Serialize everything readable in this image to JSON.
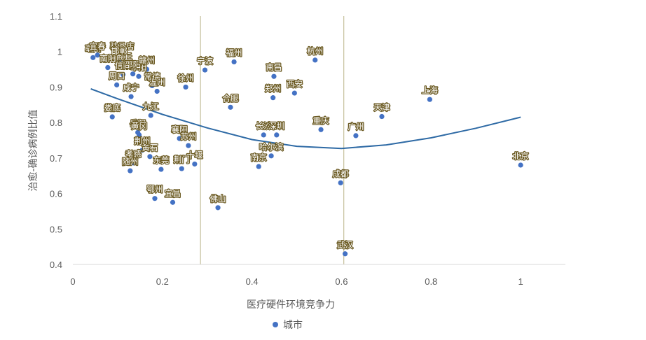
{
  "chart_data": {
    "type": "scatter",
    "xlabel": "医疗硬件环境竞争力",
    "ylabel": "治愈-确诊病例比值",
    "xlim": [
      0,
      1.1
    ],
    "ylim": [
      0.4,
      1.1
    ],
    "x_ticks": [
      "0",
      "0.2",
      "0.4",
      "0.6",
      "0.8",
      "1"
    ],
    "y_ticks": [
      "0.4",
      "0.5",
      "0.6",
      "0.7",
      "0.8",
      "0.9",
      "1",
      "1.1"
    ],
    "legend": {
      "position": "bottom",
      "entries": [
        "城市"
      ]
    },
    "grid": false,
    "colors": {
      "points": "#4472c4",
      "trend": "#2e6aa5",
      "ref_lines": "#c9c4a2",
      "label_outline": "#6b5a22"
    },
    "reference_lines_x": [
      0.285,
      0.605
    ],
    "trendline": {
      "type": "polynomial",
      "points": [
        [
          0.04,
          0.895
        ],
        [
          0.1,
          0.867
        ],
        [
          0.2,
          0.823
        ],
        [
          0.3,
          0.785
        ],
        [
          0.4,
          0.752
        ],
        [
          0.5,
          0.733
        ],
        [
          0.6,
          0.727
        ],
        [
          0.7,
          0.737
        ],
        [
          0.8,
          0.757
        ],
        [
          0.9,
          0.784
        ],
        [
          1.0,
          0.815
        ]
      ]
    },
    "series": [
      {
        "name": "城市",
        "points": [
          {
            "label": "北京",
            "x": 1.0,
            "y": 0.68
          },
          {
            "label": "上海",
            "x": 0.797,
            "y": 0.865
          },
          {
            "label": "天津",
            "x": 0.69,
            "y": 0.817
          },
          {
            "label": "广州",
            "x": 0.632,
            "y": 0.763
          },
          {
            "label": "成都",
            "x": 0.598,
            "y": 0.63
          },
          {
            "label": "武汉",
            "x": 0.608,
            "y": 0.43
          },
          {
            "label": "重庆",
            "x": 0.554,
            "y": 0.78
          },
          {
            "label": "杭州",
            "x": 0.541,
            "y": 0.976
          },
          {
            "label": "西安",
            "x": 0.495,
            "y": 0.883
          },
          {
            "label": "南昌",
            "x": 0.449,
            "y": 0.93
          },
          {
            "label": "郑州",
            "x": 0.447,
            "y": 0.87
          },
          {
            "label": "长沙",
            "x": 0.426,
            "y": 0.765
          },
          {
            "label": "深圳",
            "x": 0.455,
            "y": 0.765
          },
          {
            "label": "哈尔滨",
            "x": 0.443,
            "y": 0.706
          },
          {
            "label": "南京",
            "x": 0.415,
            "y": 0.676
          },
          {
            "label": "福州",
            "x": 0.36,
            "y": 0.971
          },
          {
            "label": "合肥",
            "x": 0.352,
            "y": 0.843
          },
          {
            "label": "佛山",
            "x": 0.324,
            "y": 0.56
          },
          {
            "label": "宁波",
            "x": 0.295,
            "y": 0.948
          },
          {
            "label": "徐州",
            "x": 0.252,
            "y": 0.9
          },
          {
            "label": "十堰",
            "x": 0.272,
            "y": 0.683
          },
          {
            "label": "荆门",
            "x": 0.243,
            "y": 0.67
          },
          {
            "label": "襄阳",
            "x": 0.238,
            "y": 0.755
          },
          {
            "label": "苏州",
            "x": 0.258,
            "y": 0.735
          },
          {
            "label": "宜昌",
            "x": 0.223,
            "y": 0.575
          },
          {
            "label": "鄂州",
            "x": 0.183,
            "y": 0.586
          },
          {
            "label": "东莞",
            "x": 0.197,
            "y": 0.668
          },
          {
            "label": "黄石",
            "x": 0.172,
            "y": 0.704
          },
          {
            "label": "荆州",
            "x": 0.155,
            "y": 0.722
          },
          {
            "label": "孝感",
            "x": 0.135,
            "y": 0.686
          },
          {
            "label": "随州",
            "x": 0.128,
            "y": 0.664
          },
          {
            "label": "岳阳",
            "x": 0.145,
            "y": 0.772
          },
          {
            "label": "黄冈",
            "x": 0.148,
            "y": 0.765
          },
          {
            "label": "九江",
            "x": 0.174,
            "y": 0.82
          },
          {
            "label": "娄底",
            "x": 0.088,
            "y": 0.816
          },
          {
            "label": "咸宁",
            "x": 0.13,
            "y": 0.873
          },
          {
            "label": "温州",
            "x": 0.188,
            "y": 0.888
          },
          {
            "label": "常德",
            "x": 0.177,
            "y": 0.904
          },
          {
            "label": "周口",
            "x": 0.098,
            "y": 0.906
          },
          {
            "label": "阜阳",
            "x": 0.147,
            "y": 0.93
          },
          {
            "label": "信阳",
            "x": 0.112,
            "y": 0.935
          },
          {
            "label": "邵阳",
            "x": 0.134,
            "y": 0.937
          },
          {
            "label": "南阳",
            "x": 0.078,
            "y": 0.955
          },
          {
            "label": "商丘",
            "x": 0.115,
            "y": 0.96
          },
          {
            "label": "赣州",
            "x": 0.165,
            "y": 0.95
          },
          {
            "label": "亳州",
            "x": 0.045,
            "y": 0.983
          },
          {
            "label": "驻马店",
            "x": 0.11,
            "y": 0.99
          },
          {
            "label": "邯郸",
            "x": 0.104,
            "y": 0.976
          },
          {
            "label": "宜春",
            "x": 0.055,
            "y": 0.99
          }
        ]
      }
    ]
  }
}
